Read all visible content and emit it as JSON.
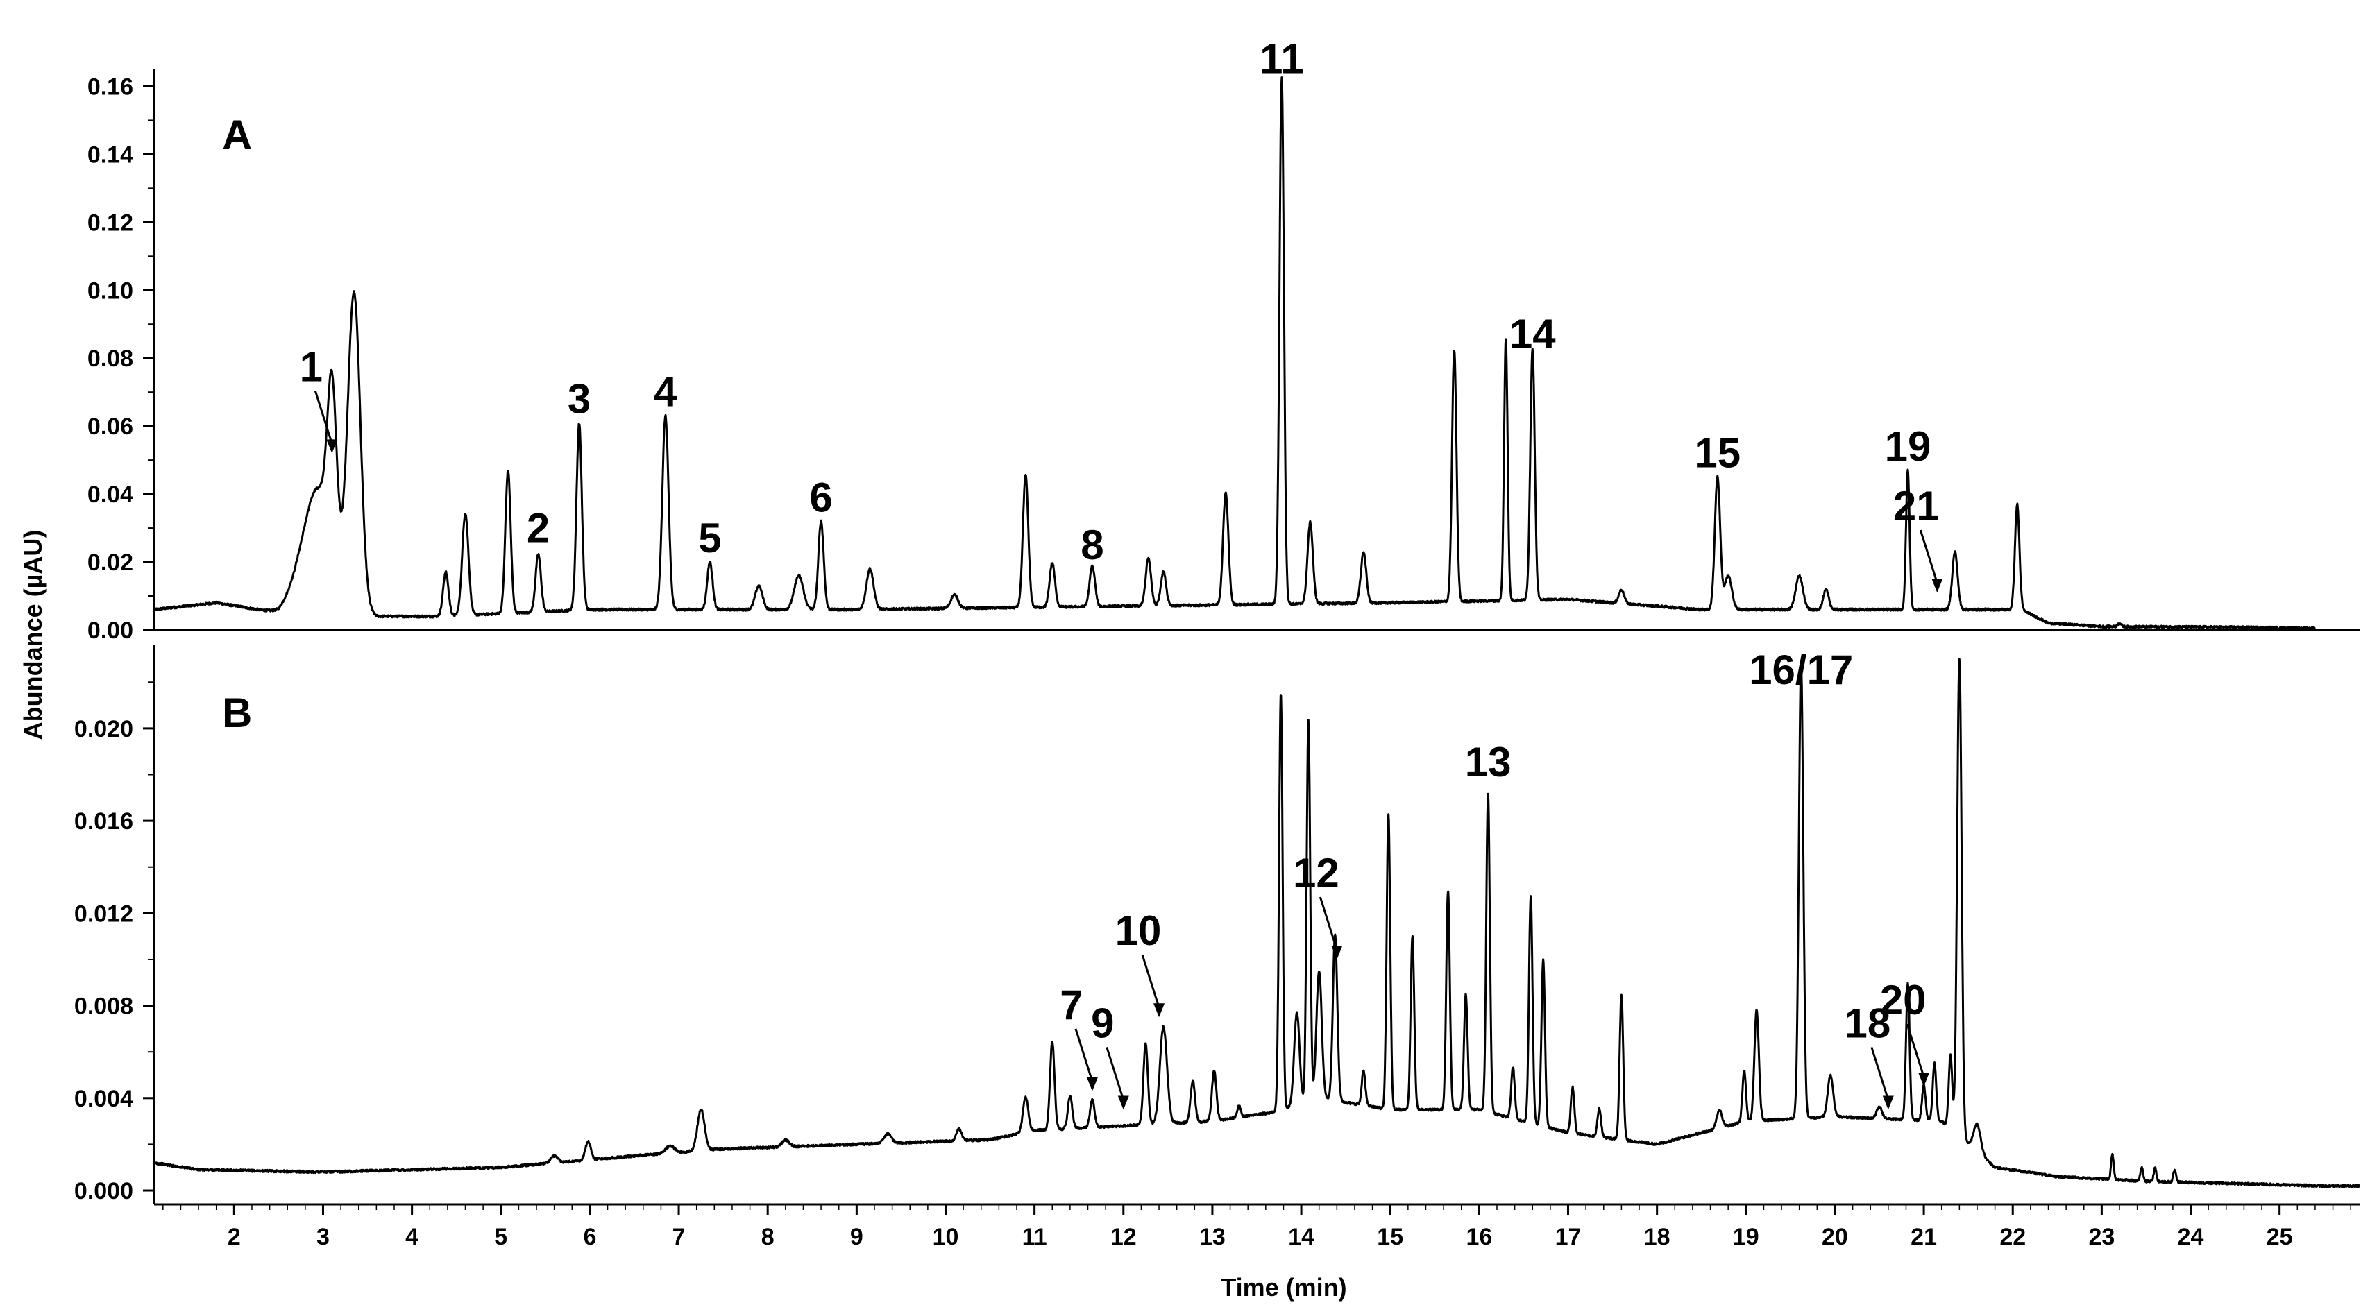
{
  "chart_data": [
    {
      "panel": "A",
      "type": "line",
      "xlabel": "Time (min)",
      "ylabel": "Abundance (µAU)",
      "xlim": [
        1.1,
        25.9
      ],
      "ylim": [
        0.0,
        0.165
      ],
      "yticks": [
        "0.00",
        "0.02",
        "0.04",
        "0.06",
        "0.08",
        "0.10",
        "0.12",
        "0.14",
        "0.16"
      ],
      "baseline": [
        [
          1.1,
          0.006
        ],
        [
          1.8,
          0.008
        ],
        [
          2.5,
          0.005
        ],
        [
          2.9,
          0.012
        ],
        [
          3.6,
          0.004
        ],
        [
          4.3,
          0.004
        ],
        [
          6.0,
          0.006
        ],
        [
          9.0,
          0.006
        ],
        [
          12.0,
          0.007
        ],
        [
          15.0,
          0.008
        ],
        [
          17.0,
          0.009
        ],
        [
          18.5,
          0.006
        ],
        [
          20.0,
          0.006
        ],
        [
          21.0,
          0.006
        ],
        [
          22.1,
          0.006
        ],
        [
          22.4,
          0.002
        ],
        [
          23.0,
          0.001
        ],
        [
          24.5,
          0.0008
        ],
        [
          25.4,
          0.0005
        ]
      ],
      "peaks": [
        [
          2.95,
          0.03,
          0.18
        ],
        [
          3.1,
          0.045,
          0.05
        ],
        [
          3.35,
          0.09,
          0.07
        ],
        [
          4.38,
          0.013,
          0.03
        ],
        [
          4.6,
          0.03,
          0.035
        ],
        [
          5.08,
          0.042,
          0.03
        ],
        [
          5.42,
          0.017,
          0.03
        ],
        [
          5.88,
          0.055,
          0.03
        ],
        [
          6.85,
          0.057,
          0.035
        ],
        [
          7.35,
          0.014,
          0.03
        ],
        [
          7.9,
          0.007,
          0.04
        ],
        [
          8.35,
          0.01,
          0.05
        ],
        [
          8.6,
          0.026,
          0.03
        ],
        [
          9.15,
          0.012,
          0.04
        ],
        [
          10.1,
          0.004,
          0.04
        ],
        [
          10.9,
          0.039,
          0.03
        ],
        [
          11.2,
          0.013,
          0.03
        ],
        [
          11.65,
          0.012,
          0.03
        ],
        [
          12.28,
          0.014,
          0.03
        ],
        [
          12.45,
          0.01,
          0.03
        ],
        [
          13.15,
          0.033,
          0.03
        ],
        [
          13.78,
          0.155,
          0.025
        ],
        [
          14.1,
          0.024,
          0.03
        ],
        [
          14.7,
          0.015,
          0.03
        ],
        [
          15.72,
          0.074,
          0.025
        ],
        [
          16.3,
          0.077,
          0.02
        ],
        [
          16.6,
          0.074,
          0.025
        ],
        [
          17.6,
          0.004,
          0.03
        ],
        [
          18.68,
          0.039,
          0.03
        ],
        [
          18.8,
          0.01,
          0.04
        ],
        [
          19.6,
          0.01,
          0.04
        ],
        [
          19.9,
          0.006,
          0.03
        ],
        [
          20.82,
          0.041,
          0.02
        ],
        [
          21.35,
          0.017,
          0.03
        ],
        [
          22.05,
          0.031,
          0.025
        ],
        [
          23.2,
          0.001,
          0.02
        ]
      ],
      "labels": [
        {
          "text": "1",
          "x": 3.1,
          "y": 0.052,
          "arrow": true
        },
        {
          "text": "2",
          "x": 5.42,
          "y": 0.023
        },
        {
          "text": "3",
          "x": 5.88,
          "y": 0.061
        },
        {
          "text": "4",
          "x": 6.85,
          "y": 0.063
        },
        {
          "text": "5",
          "x": 7.35,
          "y": 0.02
        },
        {
          "text": "6",
          "x": 8.6,
          "y": 0.032
        },
        {
          "text": "8",
          "x": 11.65,
          "y": 0.018
        },
        {
          "text": "11",
          "x": 13.78,
          "y": 0.161
        },
        {
          "text": "14",
          "x": 16.6,
          "y": 0.08
        },
        {
          "text": "15",
          "x": 18.68,
          "y": 0.045
        },
        {
          "text": "19",
          "x": 20.82,
          "y": 0.047
        },
        {
          "text": "21",
          "x": 21.15,
          "y": 0.011,
          "arrow": true
        }
      ]
    },
    {
      "panel": "B",
      "type": "line",
      "xlabel": "Time (min)",
      "ylabel": "Abundance (µAU)",
      "xlim": [
        1.1,
        25.9
      ],
      "ylim": [
        -0.0006,
        0.0236
      ],
      "yticks": [
        "0.000",
        "0.004",
        "0.008",
        "0.012",
        "0.016",
        "0.020"
      ],
      "xticks": [
        "2",
        "3",
        "4",
        "5",
        "6",
        "7",
        "8",
        "9",
        "10",
        "11",
        "12",
        "13",
        "14",
        "15",
        "16",
        "17",
        "18",
        "19",
        "20",
        "21",
        "22",
        "23",
        "24",
        "25"
      ],
      "baseline": [
        [
          1.1,
          0.0012
        ],
        [
          1.6,
          0.0009
        ],
        [
          3.0,
          0.0008
        ],
        [
          5.0,
          0.001
        ],
        [
          6.5,
          0.0015
        ],
        [
          7.5,
          0.0018
        ],
        [
          9.0,
          0.002
        ],
        [
          10.5,
          0.0022
        ],
        [
          11.0,
          0.0026
        ],
        [
          12.0,
          0.0028
        ],
        [
          13.0,
          0.003
        ],
        [
          13.7,
          0.0034
        ],
        [
          14.2,
          0.004
        ],
        [
          15.0,
          0.0035
        ],
        [
          16.0,
          0.0035
        ],
        [
          17.0,
          0.0025
        ],
        [
          18.0,
          0.002
        ],
        [
          19.0,
          0.003
        ],
        [
          20.0,
          0.0032
        ],
        [
          21.2,
          0.003
        ],
        [
          21.8,
          0.001
        ],
        [
          22.5,
          0.0006
        ],
        [
          23.5,
          0.0004
        ],
        [
          25.5,
          0.0002
        ]
      ],
      "peaks": [
        [
          5.6,
          0.0003,
          0.04
        ],
        [
          5.98,
          0.0008,
          0.03
        ],
        [
          6.9,
          0.0003,
          0.05
        ],
        [
          7.25,
          0.0018,
          0.04
        ],
        [
          8.2,
          0.0003,
          0.04
        ],
        [
          9.35,
          0.0004,
          0.04
        ],
        [
          10.15,
          0.0005,
          0.03
        ],
        [
          10.9,
          0.0015,
          0.03
        ],
        [
          11.2,
          0.0038,
          0.025
        ],
        [
          11.4,
          0.0014,
          0.025
        ],
        [
          11.65,
          0.0012,
          0.025
        ],
        [
          12.25,
          0.0035,
          0.025
        ],
        [
          12.45,
          0.0042,
          0.04
        ],
        [
          12.78,
          0.0018,
          0.025
        ],
        [
          13.02,
          0.0022,
          0.025
        ],
        [
          13.3,
          0.0005,
          0.02
        ],
        [
          13.77,
          0.018,
          0.02
        ],
        [
          13.95,
          0.004,
          0.03
        ],
        [
          14.08,
          0.0165,
          0.02
        ],
        [
          14.2,
          0.0055,
          0.03
        ],
        [
          14.38,
          0.0072,
          0.025
        ],
        [
          14.7,
          0.0015,
          0.02
        ],
        [
          14.98,
          0.0128,
          0.02
        ],
        [
          15.25,
          0.0075,
          0.02
        ],
        [
          15.65,
          0.0095,
          0.02
        ],
        [
          15.85,
          0.005,
          0.02
        ],
        [
          16.1,
          0.0138,
          0.02
        ],
        [
          16.38,
          0.0022,
          0.02
        ],
        [
          16.58,
          0.0098,
          0.02
        ],
        [
          16.72,
          0.0072,
          0.02
        ],
        [
          17.05,
          0.002,
          0.02
        ],
        [
          17.35,
          0.0012,
          0.02
        ],
        [
          17.6,
          0.0063,
          0.02
        ],
        [
          18.7,
          0.0008,
          0.03
        ],
        [
          18.98,
          0.0022,
          0.02
        ],
        [
          19.12,
          0.0048,
          0.025
        ],
        [
          19.62,
          0.0196,
          0.025
        ],
        [
          19.95,
          0.0018,
          0.03
        ],
        [
          20.5,
          0.0005,
          0.03
        ],
        [
          20.82,
          0.0059,
          0.02
        ],
        [
          21.0,
          0.0015,
          0.02
        ],
        [
          21.12,
          0.0025,
          0.02
        ],
        [
          21.3,
          0.0032,
          0.02
        ],
        [
          21.4,
          0.0207,
          0.025
        ],
        [
          21.6,
          0.0012,
          0.04
        ],
        [
          23.12,
          0.0011,
          0.015
        ],
        [
          23.45,
          0.0006,
          0.015
        ],
        [
          23.6,
          0.0006,
          0.015
        ],
        [
          23.82,
          0.0005,
          0.015
        ]
      ],
      "labels": [
        {
          "text": "7",
          "x": 11.65,
          "y": 0.0043,
          "arrow": true
        },
        {
          "text": "9",
          "x": 12.0,
          "y": 0.0035,
          "arrow": true
        },
        {
          "text": "10",
          "x": 12.4,
          "y": 0.0075,
          "arrow": true
        },
        {
          "text": "12",
          "x": 14.4,
          "y": 0.01,
          "arrow": true
        },
        {
          "text": "13",
          "x": 16.1,
          "y": 0.0175
        },
        {
          "text": "16/17",
          "x": 19.62,
          "y": 0.0215
        },
        {
          "text": "18",
          "x": 20.6,
          "y": 0.0035,
          "arrow": true
        },
        {
          "text": "20",
          "x": 21.0,
          "y": 0.0045,
          "arrow": true
        }
      ]
    }
  ]
}
